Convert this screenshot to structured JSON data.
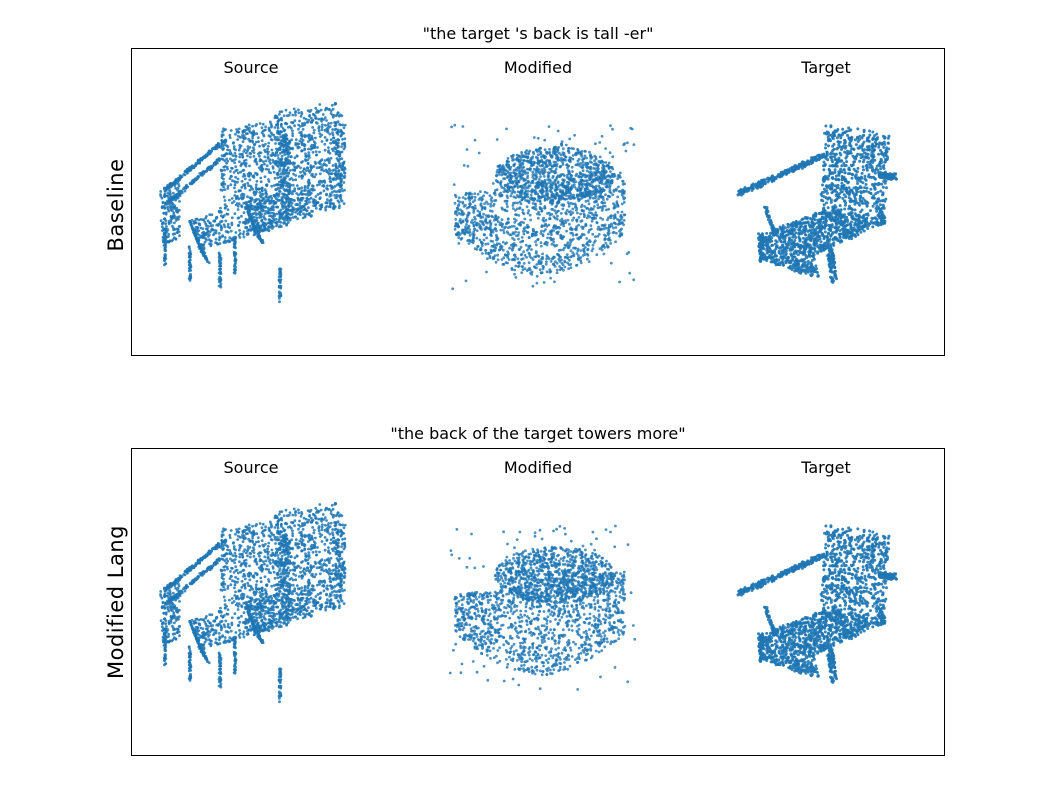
{
  "colors": {
    "points": "#1f77b4",
    "frame": "#000000",
    "background": "#ffffff"
  },
  "rows": [
    {
      "row_label": "Baseline",
      "caption": "\"the target 's back is tall -er\"",
      "columns": [
        {
          "label": "Source",
          "shape": "double-sofa-point-cloud"
        },
        {
          "label": "Modified",
          "shape": "diffuse-point-cloud"
        },
        {
          "label": "Target",
          "shape": "armchair-point-cloud"
        }
      ]
    },
    {
      "row_label": "Modified Lang",
      "caption": "\"the back of the target towers more\"",
      "columns": [
        {
          "label": "Source",
          "shape": "double-sofa-point-cloud"
        },
        {
          "label": "Modified",
          "shape": "diffuse-point-cloud"
        },
        {
          "label": "Target",
          "shape": "armchair-point-cloud"
        }
      ]
    }
  ]
}
